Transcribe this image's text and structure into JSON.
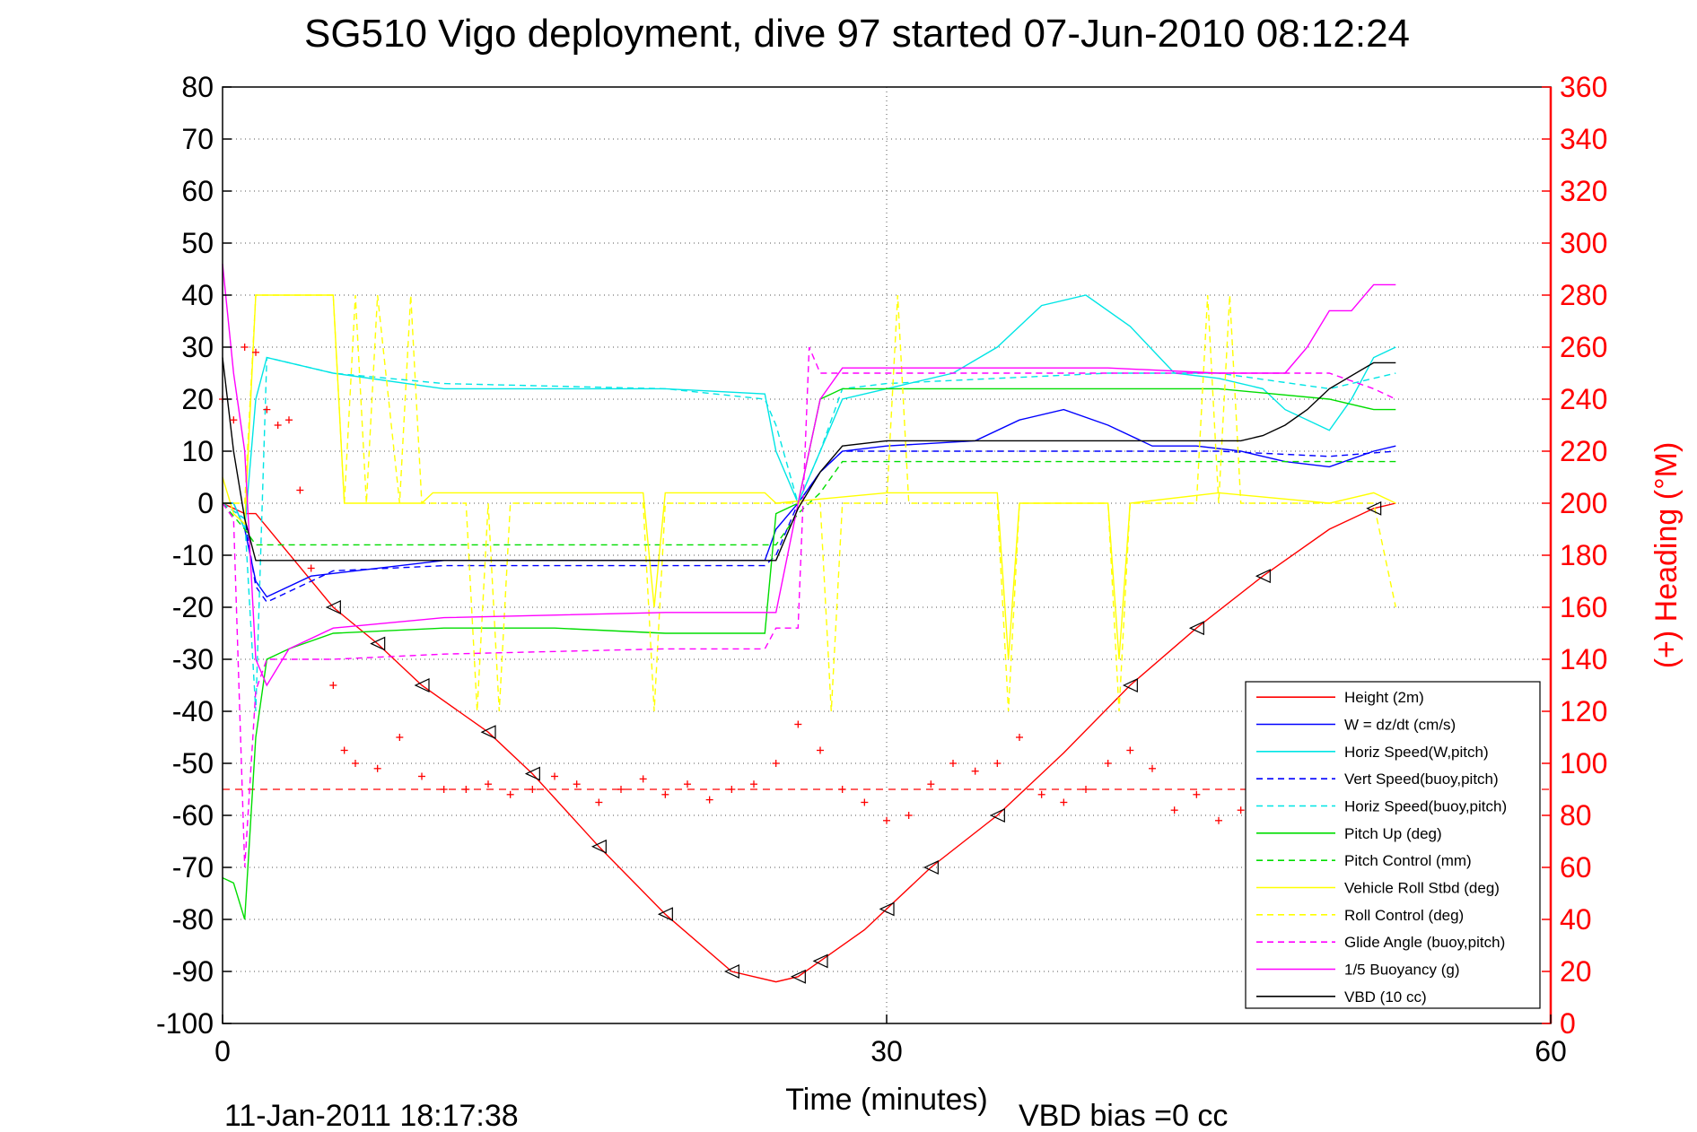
{
  "chart_data": {
    "type": "line",
    "title": "SG510 Vigo deployment, dive 97 started 07-Jun-2010 08:12:24",
    "xlabel": "Time (minutes)",
    "ylabel_right": "(+) Heading (°M)",
    "xlim": [
      0,
      60
    ],
    "ylim": [
      -100,
      80
    ],
    "ylim_right": [
      0,
      360
    ],
    "x_ticks": [
      "0",
      "30",
      "60"
    ],
    "y_ticks": [
      "80",
      "70",
      "60",
      "50",
      "40",
      "30",
      "20",
      "10",
      "0",
      "-10",
      "-20",
      "-30",
      "-40",
      "-50",
      "-60",
      "-70",
      "-80",
      "-90",
      "-100"
    ],
    "y_right_ticks": [
      "360",
      "340",
      "320",
      "300",
      "280",
      "260",
      "240",
      "220",
      "200",
      "180",
      "160",
      "140",
      "120",
      "100",
      "80",
      "60",
      "40",
      "20",
      "0"
    ],
    "grid": true,
    "legend_position": "bottom-right",
    "footer_timestamp": "11-Jan-2011 18:17:38",
    "footer_note": "VBD bias =0 cc",
    "heading_mean": 90,
    "series": [
      {
        "name": "Height (2m)",
        "color": "#ff0000",
        "style": "solid",
        "x": [
          0,
          0.5,
          1,
          1.5,
          5,
          7,
          9,
          12,
          14,
          17,
          20,
          23,
          25,
          26,
          27,
          29,
          30,
          32,
          35,
          38,
          41,
          44,
          47,
          50,
          52,
          53
        ],
        "y": [
          0,
          -1,
          -2,
          -2,
          -20,
          -27,
          -35,
          -44,
          -52,
          -66,
          -79,
          -90,
          -92,
          -91,
          -88,
          -82,
          -78,
          -70,
          -60,
          -48,
          -35,
          -24,
          -14,
          -5,
          -1,
          0
        ]
      },
      {
        "name": "W = dz/dt (cm/s)",
        "color": "#0000ff",
        "style": "solid",
        "x": [
          0,
          0.5,
          1,
          1.5,
          2,
          4,
          6,
          10,
          15,
          20,
          24.5,
          25,
          26,
          27,
          28,
          30,
          34,
          36,
          38,
          40,
          42,
          44,
          46,
          48,
          50,
          52,
          53
        ],
        "y": [
          0,
          0,
          -5,
          -15,
          -18,
          -14,
          -13,
          -11,
          -11,
          -11,
          -11,
          -5,
          0,
          6,
          10,
          11,
          12,
          16,
          18,
          15,
          11,
          11,
          10,
          8,
          7,
          10,
          11
        ]
      },
      {
        "name": "Horiz Speed(W,pitch)",
        "color": "#00e5e5",
        "style": "solid",
        "x": [
          0,
          0.5,
          1,
          1.5,
          2,
          5,
          10,
          15,
          20,
          24.5,
          25,
          26,
          27,
          28,
          30,
          33,
          35,
          37,
          39,
          41,
          43,
          45,
          47,
          48,
          50,
          51,
          52,
          53
        ],
        "y": [
          0,
          0,
          -5,
          20,
          28,
          25,
          22,
          22,
          22,
          21,
          10,
          0,
          10,
          20,
          22,
          25,
          30,
          38,
          40,
          34,
          25,
          24,
          22,
          18,
          14,
          20,
          28,
          30
        ]
      },
      {
        "name": "Vert Speed(buoy,pitch)",
        "color": "#0000ff",
        "style": "dashed",
        "x": [
          0,
          1,
          1.5,
          2,
          5,
          10,
          20,
          24.5,
          25,
          26,
          27,
          28,
          30,
          40,
          45,
          50,
          53
        ],
        "y": [
          0,
          -3,
          -16,
          -19,
          -13,
          -12,
          -12,
          -12,
          -10,
          0,
          6,
          10,
          10,
          10,
          10,
          9,
          10
        ]
      },
      {
        "name": "Horiz Speed(buoy,pitch)",
        "color": "#00e5e5",
        "style": "dashed",
        "x": [
          0,
          1,
          1.5,
          2,
          5,
          10,
          20,
          24.5,
          25,
          26,
          27,
          28,
          30,
          40,
          45,
          50,
          53
        ],
        "y": [
          0,
          -3,
          -40,
          28,
          25,
          23,
          22,
          20,
          15,
          0,
          10,
          22,
          23,
          25,
          25,
          22,
          25
        ]
      },
      {
        "name": "Pitch Up (deg)",
        "color": "#00dd00",
        "style": "solid",
        "x": [
          0,
          0.5,
          1,
          1.5,
          2,
          3,
          5,
          10,
          15,
          20,
          24.5,
          25,
          26,
          27,
          28,
          30,
          40,
          45,
          50,
          52,
          53
        ],
        "y": [
          -72,
          -73,
          -80,
          -45,
          -30,
          -28,
          -25,
          -24,
          -24,
          -25,
          -25,
          -2,
          0,
          20,
          22,
          22,
          22,
          22,
          20,
          18,
          18
        ]
      },
      {
        "name": "Pitch Control (mm)",
        "color": "#00dd00",
        "style": "dashed",
        "x": [
          0,
          1,
          1.5,
          24.5,
          25,
          26,
          27,
          28,
          30,
          40,
          53
        ],
        "y": [
          0,
          -5,
          -8,
          -8,
          -8,
          -2,
          2,
          8,
          8,
          8,
          8
        ]
      },
      {
        "name": "Vehicle Roll Stbd (deg)",
        "color": "#ffff00",
        "style": "solid",
        "x": [
          0,
          0.5,
          1,
          1.5,
          5,
          5.5,
          6,
          9,
          9.5,
          12,
          13,
          15,
          19,
          19.5,
          20,
          24.5,
          25,
          30,
          35,
          35.5,
          36,
          40,
          40.5,
          41,
          45,
          50,
          52,
          53
        ],
        "y": [
          5,
          -2,
          -4,
          40,
          40,
          0,
          0,
          0,
          2,
          2,
          2,
          2,
          2,
          -20,
          2,
          2,
          0,
          2,
          2,
          -30,
          0,
          0,
          -30,
          0,
          2,
          0,
          2,
          0
        ]
      },
      {
        "name": "Roll Control (deg)",
        "color": "#ffff00",
        "style": "dashed",
        "x": [
          0,
          0.5,
          1,
          1.5,
          5,
          5.5,
          6,
          6.5,
          7,
          8,
          8.5,
          9,
          11,
          11.5,
          12,
          12.5,
          13,
          19,
          19.5,
          20,
          27,
          27.5,
          28,
          30,
          30.5,
          31,
          35,
          35.5,
          36,
          40,
          40.5,
          41,
          44,
          44.5,
          45,
          45.5,
          46,
          52,
          53
        ],
        "y": [
          0,
          0,
          0,
          40,
          40,
          0,
          40,
          0,
          40,
          0,
          40,
          0,
          0,
          -40,
          0,
          -40,
          0,
          0,
          -40,
          0,
          0,
          -40,
          0,
          0,
          40,
          0,
          0,
          -40,
          0,
          0,
          -40,
          0,
          0,
          40,
          0,
          40,
          0,
          0,
          -20
        ]
      },
      {
        "name": "Glide Angle (buoy,pitch)",
        "color": "#ff00ff",
        "style": "dashed",
        "x": [
          0,
          0.5,
          1,
          1.5,
          2,
          5,
          10,
          20,
          24.5,
          25,
          26,
          26.5,
          27,
          28,
          30,
          40,
          45,
          50,
          52,
          53
        ],
        "y": [
          0,
          -3,
          -70,
          -36,
          -30,
          -30,
          -29,
          -28,
          -28,
          -24,
          -24,
          30,
          25,
          25,
          25,
          25,
          25,
          25,
          22,
          20
        ]
      },
      {
        "name": "1/5 Buoyancy (g)",
        "color": "#ff00ff",
        "style": "solid",
        "x": [
          0,
          0.5,
          1,
          1.5,
          2,
          3,
          5,
          10,
          20,
          24.5,
          25,
          26,
          27,
          28,
          30,
          40,
          45,
          48,
          49,
          50,
          51,
          52,
          53
        ],
        "y": [
          46,
          25,
          10,
          -30,
          -35,
          -28,
          -24,
          -22,
          -21,
          -21,
          -21,
          0,
          20,
          26,
          26,
          26,
          25,
          25,
          30,
          37,
          37,
          42,
          42
        ]
      },
      {
        "name": "VBD (10 cc)",
        "color": "#000000",
        "style": "solid",
        "x": [
          0,
          0.5,
          1,
          1.5,
          24.5,
          25,
          26,
          27,
          28,
          30,
          40,
          46,
          47,
          48,
          49,
          50,
          52,
          53
        ],
        "y": [
          28,
          10,
          -3,
          -11,
          -11,
          -11,
          -1,
          6,
          11,
          12,
          12,
          12,
          13,
          15,
          18,
          22,
          27,
          27
        ]
      }
    ],
    "heading_points": {
      "name": "Heading",
      "color": "#ff0000",
      "marker": "+",
      "x": [
        0,
        0.5,
        1,
        1.5,
        2,
        2.5,
        3,
        3.5,
        4,
        5,
        5.5,
        6,
        7,
        8,
        9,
        10,
        11,
        12,
        13,
        14,
        15,
        16,
        17,
        18,
        19,
        20,
        21,
        22,
        23,
        24,
        25,
        26,
        27,
        28,
        29,
        30,
        31,
        32,
        33,
        34,
        35,
        36,
        37,
        38,
        39,
        40,
        41,
        42,
        43,
        44,
        45,
        46,
        47,
        48,
        49
      ],
      "y": [
        240,
        232,
        260,
        258,
        236,
        230,
        232,
        205,
        175,
        130,
        105,
        100,
        98,
        110,
        95,
        90,
        90,
        92,
        88,
        90,
        95,
        92,
        85,
        90,
        94,
        88,
        92,
        86,
        90,
        92,
        100,
        115,
        105,
        90,
        85,
        78,
        80,
        92,
        100,
        97,
        100,
        110,
        88,
        85,
        90,
        100,
        105,
        98,
        82,
        88,
        78,
        82,
        90,
        92,
        84
      ]
    }
  }
}
